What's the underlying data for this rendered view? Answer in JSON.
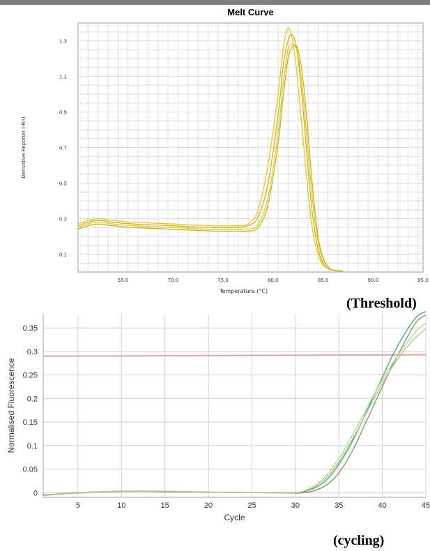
{
  "captions": {
    "threshold": "(Threshold)",
    "cycling": "(cycling)"
  },
  "colors": {
    "melt_line": "#e2c62e",
    "melt_line_dark": "#cdb020",
    "threshold_line": "#e8a0a8",
    "amp_green": "#3fa86a",
    "amp_gray": "#8a8a6a",
    "amp_light_green": "#a8d890",
    "amp_tan": "#c0b890",
    "grid": "#d0d0d0"
  },
  "chart_data": [
    {
      "type": "line",
      "title": "Melt Curve",
      "xlabel": "Temperature (°C)",
      "ylabel": "Derivative Reporter (-Rn)",
      "xlim": [
        60.5,
        95.0
      ],
      "ylim": [
        0.0,
        1.4
      ],
      "x_ticks": [
        65.0,
        70.0,
        75.0,
        80.0,
        85.0,
        90.0,
        95.0
      ],
      "x_tick_labels": [
        "65.0",
        "70.0",
        "75.0",
        "80.0",
        "85.0",
        "90.0",
        "95.0"
      ],
      "y_ticks": [
        0.1,
        0.3,
        0.5,
        0.7,
        0.9,
        1.1,
        1.3
      ],
      "y_tick_labels": [
        "0.1",
        "0.3",
        "0.5",
        "0.7",
        "0.9",
        "1.1",
        "1.3"
      ],
      "grid": true,
      "series": [
        {
          "x": [
            60.5,
            61.5,
            62.5,
            64,
            66,
            70,
            74,
            76,
            77.5,
            78.5,
            79.5,
            80.5,
            81,
            81.5,
            82,
            82.5,
            83,
            83.5,
            84,
            84.5,
            85,
            85.5,
            86,
            87
          ],
          "values": [
            0.27,
            0.29,
            0.3,
            0.29,
            0.28,
            0.27,
            0.26,
            0.26,
            0.27,
            0.35,
            0.6,
            1.0,
            1.25,
            1.37,
            1.29,
            1.05,
            0.75,
            0.45,
            0.22,
            0.1,
            0.04,
            0.02,
            0.01,
            0.005
          ]
        },
        {
          "x": [
            60.5,
            61.5,
            62.5,
            64,
            66,
            70,
            74,
            76,
            77.5,
            78.5,
            79.5,
            80.5,
            81,
            81.5,
            82,
            82.5,
            83,
            83.5,
            84,
            84.5,
            85,
            85.5,
            86,
            87
          ],
          "values": [
            0.26,
            0.28,
            0.29,
            0.28,
            0.27,
            0.26,
            0.25,
            0.25,
            0.26,
            0.31,
            0.5,
            0.88,
            1.15,
            1.3,
            1.33,
            1.2,
            0.92,
            0.58,
            0.3,
            0.13,
            0.05,
            0.02,
            0.01,
            0.005
          ]
        },
        {
          "x": [
            60.5,
            61.5,
            62.5,
            64,
            66,
            70,
            74,
            76,
            77.5,
            78.5,
            79.5,
            80.5,
            81,
            81.5,
            82,
            82.5,
            83,
            83.5,
            84,
            84.5,
            85,
            85.5,
            86,
            87
          ],
          "values": [
            0.25,
            0.27,
            0.28,
            0.27,
            0.26,
            0.25,
            0.24,
            0.24,
            0.24,
            0.27,
            0.42,
            0.78,
            1.05,
            1.25,
            1.28,
            1.22,
            1.0,
            0.68,
            0.38,
            0.17,
            0.07,
            0.03,
            0.01,
            0.005
          ]
        },
        {
          "x": [
            60.5,
            61.5,
            62.5,
            64,
            66,
            70,
            74,
            76,
            77.5,
            78.5,
            79.5,
            80.5,
            81,
            81.5,
            82,
            82.5,
            83,
            83.5,
            84,
            84.5,
            85,
            85.5,
            86,
            87
          ],
          "values": [
            0.24,
            0.26,
            0.27,
            0.26,
            0.25,
            0.24,
            0.23,
            0.23,
            0.23,
            0.25,
            0.38,
            0.72,
            0.98,
            1.2,
            1.27,
            1.25,
            1.08,
            0.78,
            0.45,
            0.2,
            0.08,
            0.03,
            0.01,
            0.005
          ]
        }
      ]
    },
    {
      "type": "line",
      "title": "",
      "xlabel": "Cycle",
      "ylabel": "Normalised Fluorescence",
      "xlim": [
        1,
        45
      ],
      "ylim": [
        -0.01,
        0.38
      ],
      "x_ticks": [
        5,
        10,
        15,
        20,
        25,
        30,
        35,
        40,
        45
      ],
      "x_tick_labels": [
        "5",
        "10",
        "15",
        "20",
        "25",
        "30",
        "35",
        "40",
        "45"
      ],
      "y_ticks": [
        0,
        0.05,
        0.1,
        0.15,
        0.2,
        0.25,
        0.3,
        0.35
      ],
      "y_tick_labels": [
        "0",
        "0.05",
        "0.1",
        "0.15",
        "0.2",
        "0.25",
        "0.3",
        "0.35"
      ],
      "grid": true,
      "threshold": {
        "x": [
          1,
          45
        ],
        "values": [
          0.29,
          0.293
        ]
      },
      "series": [
        {
          "x": [
            1,
            5,
            10,
            15,
            20,
            25,
            30,
            31,
            32,
            33,
            34,
            35,
            36,
            37,
            38,
            39,
            40,
            41,
            42,
            43,
            44,
            45
          ],
          "values": [
            -0.006,
            -0.001,
            0.003,
            0.003,
            0.001,
            0.0,
            0.0,
            0.002,
            0.008,
            0.018,
            0.035,
            0.06,
            0.09,
            0.125,
            0.165,
            0.205,
            0.245,
            0.285,
            0.32,
            0.35,
            0.375,
            0.385
          ]
        },
        {
          "x": [
            1,
            5,
            10,
            15,
            20,
            25,
            30,
            31,
            32,
            33,
            34,
            35,
            36,
            37,
            38,
            39,
            40,
            41,
            42,
            43,
            44,
            45
          ],
          "values": [
            -0.005,
            0.0,
            0.003,
            0.002,
            0.001,
            0.0,
            -0.001,
            0.0,
            0.003,
            0.01,
            0.022,
            0.042,
            0.07,
            0.105,
            0.145,
            0.185,
            0.225,
            0.265,
            0.3,
            0.335,
            0.365,
            0.378
          ]
        },
        {
          "x": [
            1,
            5,
            10,
            15,
            20,
            25,
            30,
            31,
            32,
            33,
            34,
            35,
            36,
            37,
            38,
            39,
            40,
            41,
            42,
            43,
            44,
            45
          ],
          "values": [
            -0.006,
            -0.001,
            0.002,
            0.003,
            0.001,
            0.0,
            0.0,
            0.004,
            0.012,
            0.026,
            0.046,
            0.072,
            0.103,
            0.137,
            0.172,
            0.207,
            0.24,
            0.27,
            0.298,
            0.322,
            0.345,
            0.36
          ]
        },
        {
          "x": [
            1,
            5,
            10,
            15,
            20,
            25,
            30,
            31,
            32,
            33,
            34,
            35,
            36,
            37,
            38,
            39,
            40,
            41,
            42,
            43,
            44,
            45
          ],
          "values": [
            -0.006,
            0.0,
            0.003,
            0.003,
            0.001,
            0.0,
            0.0,
            0.003,
            0.01,
            0.022,
            0.04,
            0.065,
            0.095,
            0.128,
            0.163,
            0.198,
            0.232,
            0.263,
            0.29,
            0.313,
            0.333,
            0.348
          ]
        }
      ]
    }
  ]
}
